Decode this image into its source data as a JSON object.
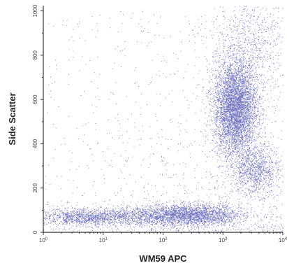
{
  "chart_data": {
    "type": "scatter",
    "title": "",
    "xlabel": "WM59 APC",
    "ylabel": "Side Scatter",
    "x_scale": "log",
    "xlim": [
      1,
      10000
    ],
    "ylim": [
      0,
      1024
    ],
    "x_ticks": [
      1,
      10,
      100,
      1000,
      10000
    ],
    "y_ticks": [
      0,
      200,
      400,
      600,
      800,
      1000
    ],
    "y_tick_labels": [
      "0",
      "200",
      "400",
      "600",
      "800",
      "1000"
    ],
    "grid": false,
    "legend": "none",
    "point_color": "#3b3fa8",
    "populations": [
      {
        "center_x": 6,
        "center_y": 70,
        "spread_x_decades": 0.55,
        "spread_y": 18,
        "relative_density": 0.09
      },
      {
        "center_x": 250,
        "center_y": 80,
        "spread_x_decades": 0.45,
        "spread_y": 25,
        "relative_density": 0.17
      },
      {
        "center_x": 1600,
        "center_y": 560,
        "spread_x_decades": 0.18,
        "spread_y": 110,
        "relative_density": 0.45
      },
      {
        "center_x": 3500,
        "center_y": 280,
        "spread_x_decades": 0.2,
        "spread_y": 55,
        "relative_density": 0.08
      },
      {
        "center_x": 3000,
        "center_y": 850,
        "spread_x_decades": 0.35,
        "spread_y": 120,
        "relative_density": 0.06
      }
    ]
  }
}
